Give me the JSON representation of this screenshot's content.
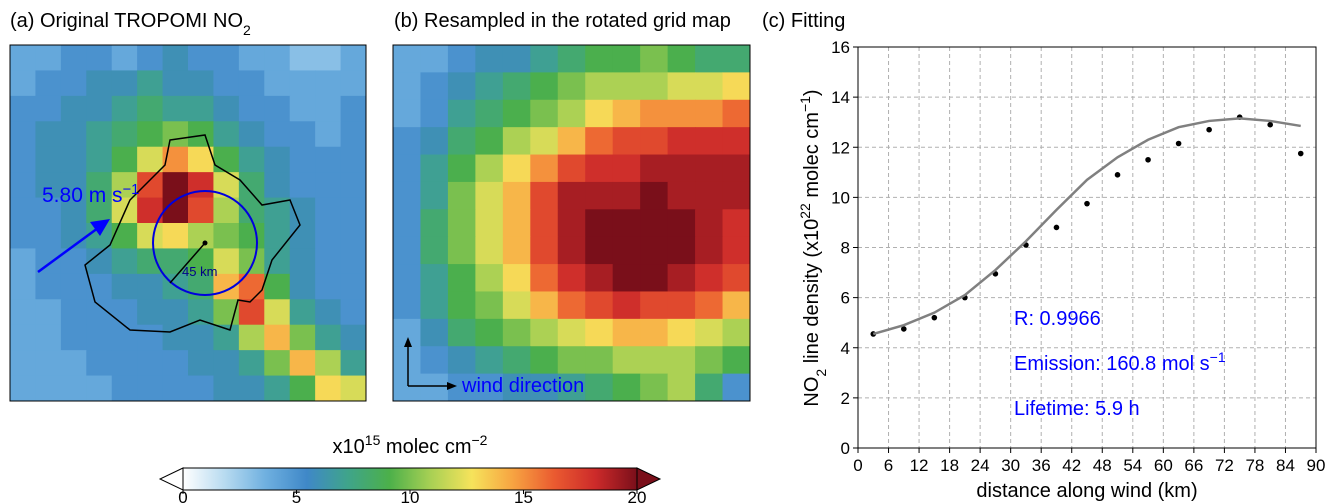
{
  "chart_data": [
    {
      "type": "heatmap",
      "title": "(a) Original TROPOMI NO",
      "title_sub": "2",
      "wind_speed": {
        "text": "5.80 m s",
        "sup": "−1"
      },
      "radius_label": "45 km",
      "values": [
        [
          4,
          4,
          5,
          5,
          4,
          5,
          6,
          5,
          5,
          4,
          4,
          3,
          3,
          4
        ],
        [
          4,
          5,
          5,
          6,
          6,
          7,
          6,
          6,
          5,
          5,
          4,
          4,
          4,
          4
        ],
        [
          5,
          5,
          6,
          6,
          7,
          8,
          7,
          7,
          6,
          5,
          5,
          4,
          4,
          5
        ],
        [
          5,
          6,
          6,
          7,
          8,
          9,
          10,
          9,
          7,
          6,
          5,
          5,
          4,
          5
        ],
        [
          5,
          6,
          6,
          7,
          9,
          12,
          15,
          13,
          9,
          7,
          6,
          5,
          5,
          5
        ],
        [
          5,
          6,
          6,
          8,
          11,
          17,
          20,
          18,
          12,
          8,
          6,
          5,
          5,
          5
        ],
        [
          5,
          5,
          6,
          8,
          12,
          18,
          20,
          17,
          11,
          8,
          7,
          6,
          5,
          5
        ],
        [
          5,
          5,
          6,
          7,
          9,
          12,
          13,
          11,
          10,
          9,
          7,
          6,
          5,
          5
        ],
        [
          4,
          5,
          5,
          6,
          7,
          8,
          8,
          9,
          12,
          10,
          7,
          6,
          5,
          5
        ],
        [
          4,
          5,
          5,
          5,
          6,
          6,
          7,
          8,
          14,
          16,
          9,
          6,
          5,
          5
        ],
        [
          4,
          4,
          5,
          5,
          5,
          6,
          6,
          7,
          10,
          17,
          12,
          7,
          6,
          5
        ],
        [
          4,
          4,
          5,
          5,
          5,
          5,
          6,
          6,
          7,
          11,
          14,
          10,
          7,
          6
        ],
        [
          4,
          4,
          4,
          5,
          5,
          5,
          5,
          6,
          6,
          7,
          10,
          14,
          11,
          7
        ],
        [
          4,
          4,
          4,
          4,
          5,
          5,
          5,
          5,
          6,
          6,
          7,
          9,
          13,
          12
        ]
      ]
    },
    {
      "type": "heatmap",
      "title": "(b) Resampled in the rotated grid map",
      "direction_label": "wind direction",
      "values": [
        [
          4,
          4,
          5,
          6,
          6,
          7,
          8,
          9,
          9,
          10,
          9,
          8,
          8
        ],
        [
          4,
          5,
          6,
          7,
          8,
          9,
          10,
          11,
          11,
          11,
          12,
          12,
          13
        ],
        [
          4,
          5,
          7,
          8,
          9,
          10,
          11,
          13,
          14,
          15,
          15,
          15,
          16
        ],
        [
          5,
          6,
          8,
          9,
          11,
          12,
          14,
          16,
          17,
          17,
          18,
          18,
          18
        ],
        [
          5,
          7,
          9,
          11,
          13,
          15,
          17,
          18,
          18,
          19,
          19,
          19,
          19
        ],
        [
          5,
          7,
          10,
          12,
          14,
          17,
          19,
          19,
          19,
          20,
          19,
          19,
          19
        ],
        [
          5,
          8,
          10,
          12,
          14,
          17,
          19,
          20,
          20,
          20,
          20,
          19,
          18
        ],
        [
          5,
          8,
          10,
          12,
          14,
          17,
          19,
          20,
          20,
          20,
          20,
          19,
          18
        ],
        [
          5,
          7,
          9,
          11,
          13,
          16,
          18,
          19,
          20,
          20,
          19,
          18,
          17
        ],
        [
          5,
          7,
          9,
          10,
          12,
          14,
          16,
          17,
          18,
          17,
          17,
          16,
          14
        ],
        [
          4,
          6,
          8,
          9,
          10,
          11,
          12,
          13,
          14,
          14,
          13,
          12,
          11
        ],
        [
          4,
          5,
          6,
          7,
          8,
          9,
          10,
          10,
          11,
          11,
          11,
          10,
          9
        ],
        [
          4,
          4,
          5,
          5,
          6,
          6,
          7,
          8,
          9,
          10,
          11,
          8,
          5
        ]
      ]
    },
    {
      "type": "scatter",
      "title": "(c) Fitting",
      "xlabel": "distance along wind (km)",
      "ylabel": [
        "NO",
        "2",
        " line density (x10",
        "22",
        " molec cm",
        "−1",
        ")"
      ],
      "x": [
        3,
        9,
        15,
        21,
        27,
        33,
        39,
        45,
        51,
        57,
        63,
        69,
        75,
        81,
        87
      ],
      "series": [
        {
          "type": "scatter",
          "color": "#000000",
          "values": [
            4.55,
            4.75,
            5.2,
            6.0,
            6.95,
            8.1,
            8.8,
            9.75,
            10.9,
            11.5,
            12.15,
            12.7,
            13.2,
            12.9,
            11.75
          ]
        },
        {
          "type": "line",
          "color": "#808080",
          "values": [
            4.55,
            4.9,
            5.4,
            6.1,
            7.1,
            8.25,
            9.5,
            10.7,
            11.6,
            12.3,
            12.8,
            13.05,
            13.15,
            13.05,
            12.85
          ]
        }
      ],
      "xlim": [
        0,
        90
      ],
      "xticks": [
        0,
        6,
        12,
        18,
        24,
        30,
        36,
        42,
        48,
        54,
        60,
        66,
        72,
        78,
        84,
        90
      ],
      "ylim": [
        0,
        16
      ],
      "yticks": [
        0,
        2,
        4,
        6,
        8,
        10,
        12,
        14,
        16
      ],
      "grid": true,
      "annotations": [
        {
          "text": "R: 0.9966"
        },
        {
          "text": "Emission: 160.8 mol s",
          "sup": "−1"
        },
        {
          "text": "Lifetime: 5.9 h"
        }
      ],
      "annotation_color": "#0000ff"
    }
  ],
  "colorbar": {
    "label": [
      "x10",
      "15",
      " molec cm",
      "−2"
    ],
    "lim": [
      0,
      20
    ],
    "ticks": [
      0,
      5,
      10,
      15,
      20
    ],
    "colormap": [
      "#ffffff",
      "#b8dbf0",
      "#6fb0e0",
      "#3f88c8",
      "#3fa48a",
      "#4cb04a",
      "#a8d054",
      "#f6e35b",
      "#f7a341",
      "#ea5a30",
      "#cc2a2a",
      "#7a0f1a"
    ]
  }
}
